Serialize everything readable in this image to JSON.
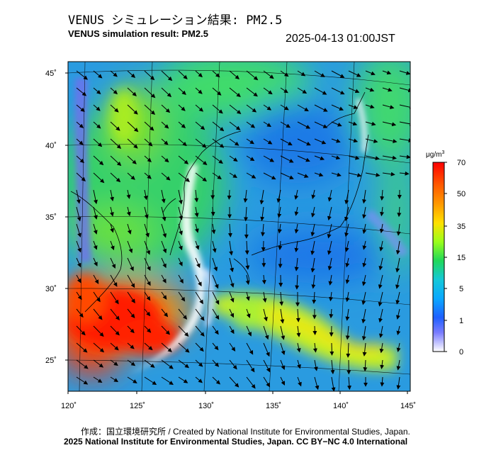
{
  "header": {
    "title_jp": "VENUS シミュレーション結果: PM2.5",
    "title_en": "VENUS simulation result: PM2.5",
    "timestamp": "2025-04-13 01:00JST"
  },
  "map": {
    "lat_ticks": [
      "45˚",
      "40˚",
      "35˚",
      "30˚",
      "25˚"
    ],
    "lon_ticks": [
      "120˚",
      "125˚",
      "130˚",
      "135˚",
      "140˚",
      "145˚"
    ],
    "lat_values": [
      45,
      40,
      35,
      30,
      25
    ],
    "lon_values": [
      120,
      125,
      130,
      135,
      140,
      145
    ],
    "region": "East Asia / Japan"
  },
  "colorbar": {
    "unit_prefix": "μg/m",
    "unit_sup": "3",
    "ticks": [
      "70",
      "50",
      "35",
      "15",
      "5",
      "1",
      "0"
    ],
    "tick_values": [
      70,
      50,
      35,
      15,
      5,
      1,
      0
    ],
    "colors": [
      "#ff0000",
      "#ff8c00",
      "#ffe000",
      "#7fff00",
      "#22cc55",
      "#00bfff",
      "#1e5fff",
      "#8a8cff",
      "#ffffff"
    ]
  },
  "footer": {
    "credit": "作成：国立環境研究所 / Created by National Institute for Environmental Studies, Japan.",
    "copyright": "2025 National Institute for Environmental Studies, Japan. CC BY−NC 4.0 International"
  }
}
